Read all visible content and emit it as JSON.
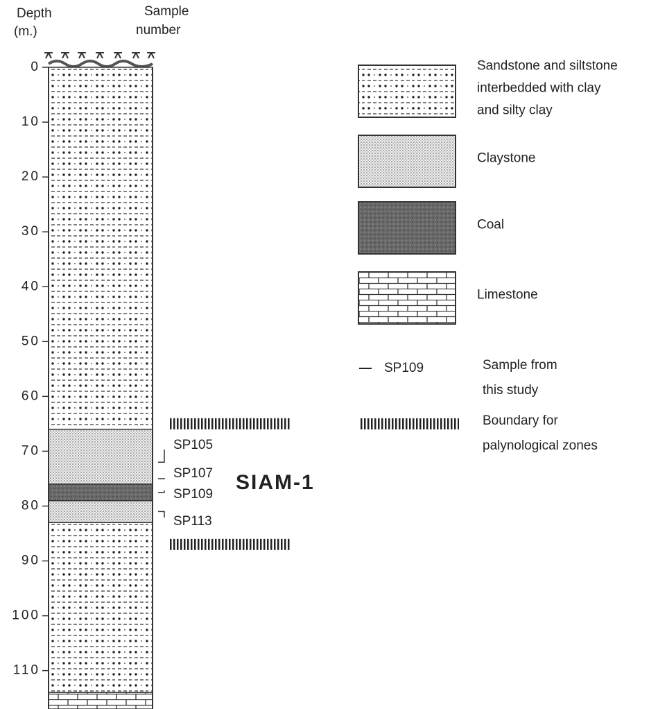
{
  "header": {
    "depth": [
      "Depth",
      "(m.)"
    ],
    "sample": [
      "Sample",
      "number"
    ]
  },
  "depth_axis": {
    "ylim": [
      0,
      117
    ],
    "yticks": [
      0,
      10,
      20,
      30,
      40,
      50,
      60,
      70,
      80,
      90,
      100,
      110
    ]
  },
  "well_name": "SIAM-1",
  "samples": [
    {
      "label": "SP105",
      "depth": 72
    },
    {
      "label": "SP107",
      "depth": 75
    },
    {
      "label": "SP109",
      "depth": 77.5
    },
    {
      "label": "SP113",
      "depth": 81
    }
  ],
  "zone_boundaries": [
    65,
    87
  ],
  "legend": {
    "items": [
      {
        "lines": [
          "Sandstone and siltstone",
          "interbedded with clay",
          "and silty clay"
        ],
        "intervals": [
          [
            0,
            66
          ],
          [
            83,
            114
          ]
        ]
      },
      {
        "lines": [
          "Claystone"
        ],
        "intervals": [
          [
            66,
            76
          ],
          [
            79,
            83
          ]
        ]
      },
      {
        "lines": [
          "Coal"
        ],
        "intervals": [
          [
            76,
            79
          ]
        ]
      },
      {
        "lines": [
          "Limestone"
        ],
        "intervals": [
          [
            114,
            117
          ]
        ]
      }
    ],
    "sample": {
      "symbol": "SP109",
      "lines": [
        "Sample from",
        "this study"
      ]
    },
    "boundary": {
      "lines": [
        "Boundary for",
        "palynological zones"
      ]
    }
  }
}
